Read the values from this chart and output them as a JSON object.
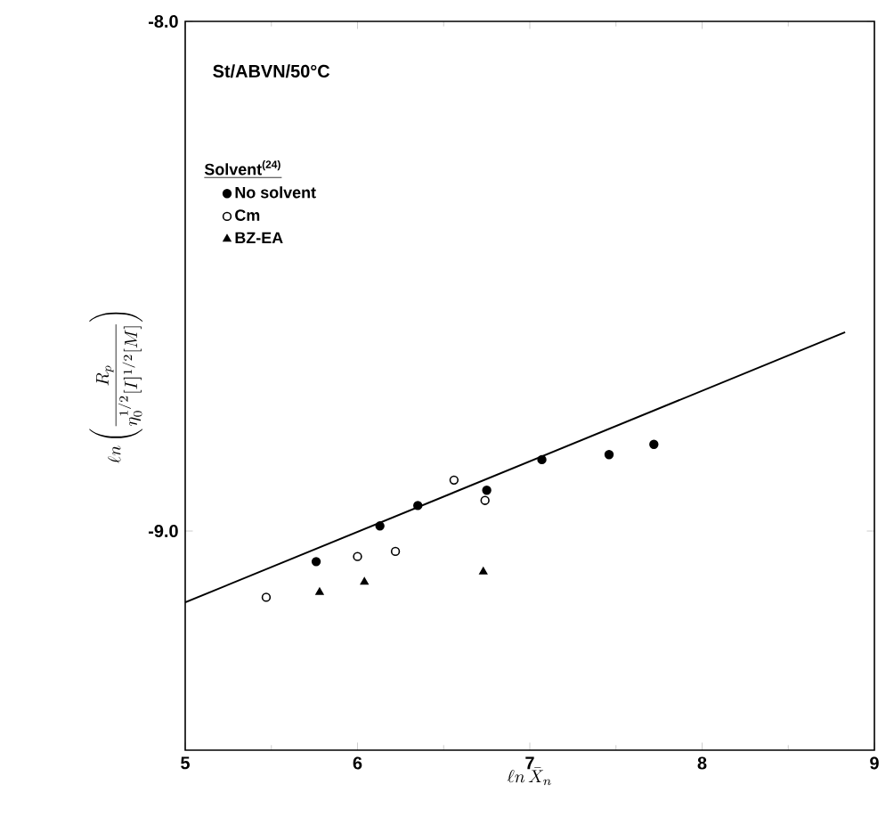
{
  "chart_data": {
    "type": "scatter",
    "xlabel": "\\ell n\\,\\bar{X}_n",
    "ylabel": "\\ell n\\left(\\frac{R_p}{\\eta_0^{1/2}[I]^{1/2}[M]}\\right)",
    "legend_title": "Solvent$^{(24)}$",
    "annotations": [
      "St/ABVN/50°C"
    ],
    "series": [
      {
        "name": "No solvent",
        "color": "#000000",
        "marker": "circle",
        "x": [
          5.76,
          6.13,
          6.35,
          6.75,
          7.07,
          7.46,
          7.72
        ],
        "values": [
          -9.06,
          -8.99,
          -8.95,
          -8.92,
          -8.86,
          -8.85,
          -8.83
        ]
      },
      {
        "name": "Cm",
        "color": "#000000",
        "marker": "open circle",
        "x": [
          5.47,
          6.0,
          6.22,
          6.56,
          6.74
        ],
        "values": [
          -9.13,
          -9.05,
          -9.04,
          -8.9,
          -8.94
        ]
      },
      {
        "name": "BZ-EA",
        "color": "#000000",
        "marker": "triangle",
        "x": [
          5.78,
          6.04,
          6.73
        ],
        "values": [
          -9.12,
          -9.1,
          -9.08
        ]
      },
      {
        "type": "line",
        "color": "#000000",
        "x": [
          5,
          8.83
        ],
        "values": [
          -9.14,
          -8.61
        ]
      }
    ],
    "xlim": [
      5,
      9
    ],
    "ylim": [
      -9.43,
      -8.0
    ],
    "xticks": [
      5,
      6,
      7,
      8,
      9
    ],
    "yticks": [
      {
        "value": -8.0,
        "label": "-8.0"
      },
      {
        "value": -9.0,
        "label": "-9.0"
      }
    ],
    "legend": "top left"
  }
}
